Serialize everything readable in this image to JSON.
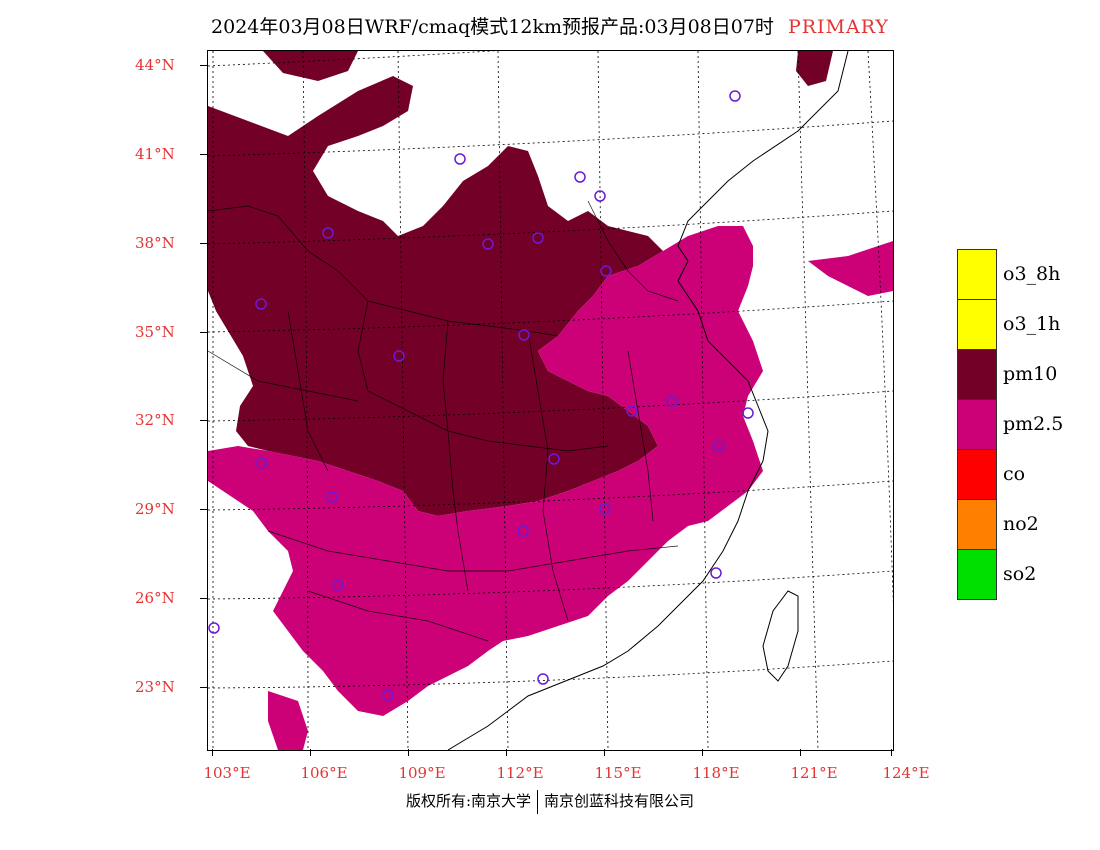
{
  "title": {
    "text": "2024年03月08日WRF/cmaq模式12km预报产品:03月08日07时",
    "tag": "PRIMARY"
  },
  "lat_labels": [
    "44°N",
    "41°N",
    "38°N",
    "35°N",
    "32°N",
    "29°N",
    "26°N",
    "23°N"
  ],
  "lon_labels": [
    "103°E",
    "106°E",
    "109°E",
    "112°E",
    "115°E",
    "118°E",
    "121°E",
    "124°E"
  ],
  "legend": [
    {
      "label": "o3_8h",
      "color": "#ffff00"
    },
    {
      "label": "o3_1h",
      "color": "#ffff00"
    },
    {
      "label": "pm10",
      "color": "#730026"
    },
    {
      "label": "pm2.5",
      "color": "#cc0077"
    },
    {
      "label": "co",
      "color": "#ff0000"
    },
    {
      "label": "no2",
      "color": "#ff7f00"
    },
    {
      "label": "so2",
      "color": "#00e000"
    }
  ],
  "colors": {
    "pm10": "#730026",
    "pm25": "#cc0077",
    "station": "#6a1bd6",
    "axis_label": "#e53333"
  },
  "footer": {
    "left": "版权所有:南京大学",
    "right": "南京创蓝科技有限公司"
  }
}
